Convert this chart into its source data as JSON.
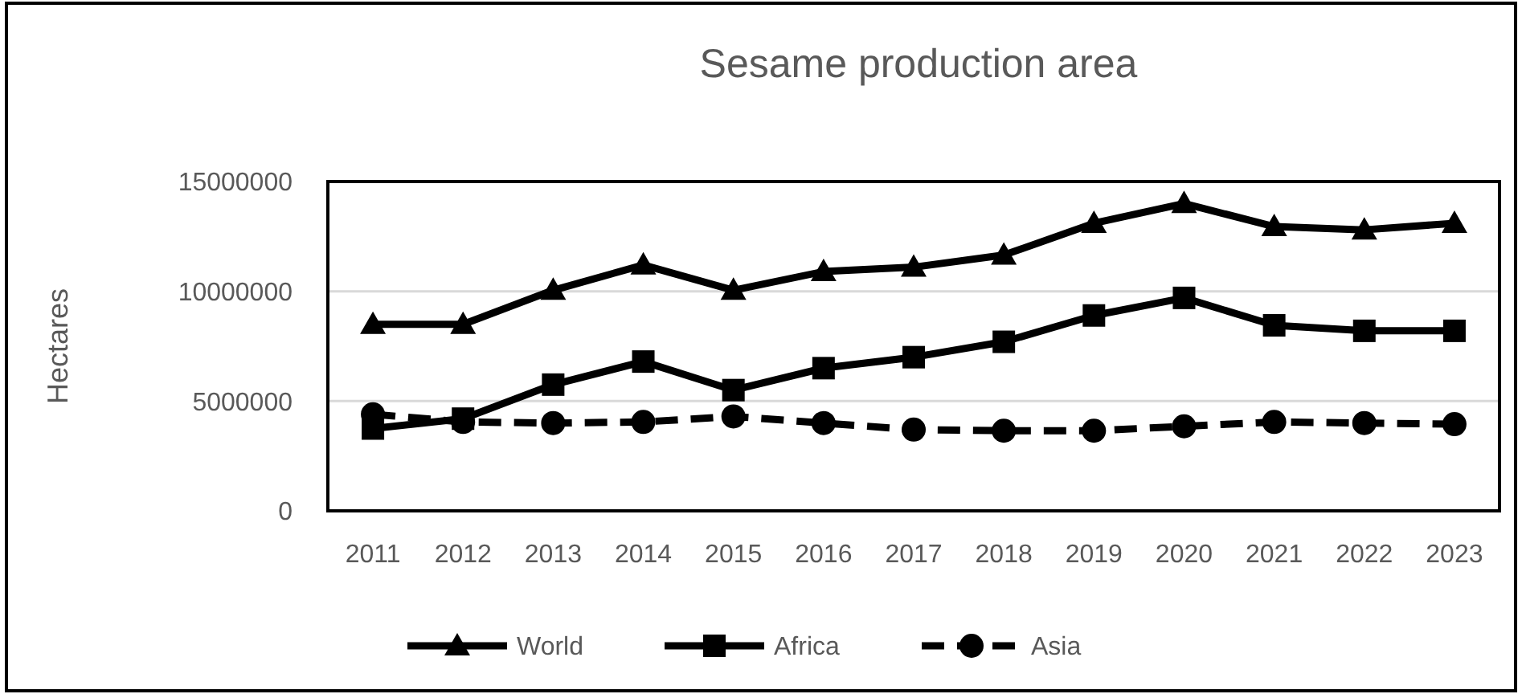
{
  "chart_data": {
    "type": "line",
    "title": "Sesame production area",
    "ylabel": "Hectares",
    "categories": [
      "2011",
      "2012",
      "2013",
      "2014",
      "2015",
      "2016",
      "2017",
      "2018",
      "2019",
      "2020",
      "2021",
      "2022",
      "2023"
    ],
    "series": [
      {
        "name": "World",
        "color": "#000000",
        "marker": "triangle",
        "line_style": "solid",
        "values": [
          8500000,
          8500000,
          10050000,
          11200000,
          10050000,
          10900000,
          11100000,
          11650000,
          13100000,
          14000000,
          12950000,
          12800000,
          13100000
        ]
      },
      {
        "name": "Africa",
        "color": "#000000",
        "marker": "square",
        "line_style": "solid",
        "values": [
          3750000,
          4200000,
          5750000,
          6800000,
          5500000,
          6500000,
          7000000,
          7700000,
          8900000,
          9700000,
          8450000,
          8200000,
          8200000
        ]
      },
      {
        "name": "Asia",
        "color": "#000000",
        "marker": "circle",
        "line_style": "dashed",
        "values": [
          4400000,
          4050000,
          4000000,
          4050000,
          4300000,
          4000000,
          3700000,
          3650000,
          3650000,
          3850000,
          4050000,
          4000000,
          3950000
        ]
      }
    ],
    "ylim": [
      0,
      15000000
    ],
    "yticks": [
      0,
      5000000,
      10000000,
      15000000
    ],
    "grid": "y",
    "legend": "bottom"
  }
}
